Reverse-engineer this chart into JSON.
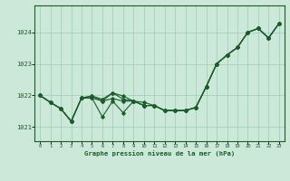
{
  "title": "Graphe pression niveau de la mer (hPa)",
  "background_color": "#cce8d8",
  "grid_color": "#99ccbb",
  "line_color": "#1a5c2a",
  "marker_color": "#1a5c2a",
  "xlim": [
    -0.5,
    23.5
  ],
  "ylim": [
    1020.55,
    1024.85
  ],
  "yticks": [
    1021,
    1022,
    1023,
    1024
  ],
  "xticks": [
    0,
    1,
    2,
    3,
    4,
    5,
    6,
    7,
    8,
    9,
    10,
    11,
    12,
    13,
    14,
    15,
    16,
    17,
    18,
    19,
    20,
    21,
    22,
    23
  ],
  "series1": [
    1022.0,
    1021.78,
    1021.58,
    1021.18,
    1021.92,
    1021.92,
    1021.82,
    1021.9,
    1021.82,
    1021.82,
    1021.68,
    1021.68,
    1021.52,
    1021.52,
    1021.52,
    1021.62,
    1022.28,
    1023.0,
    1023.28,
    1023.52,
    1024.0,
    1024.12,
    1023.82,
    1024.28
  ],
  "series2": [
    1022.0,
    1021.78,
    1021.58,
    1021.18,
    1021.92,
    1021.92,
    1021.32,
    1021.82,
    1021.45,
    1021.82,
    1021.68,
    1021.68,
    1021.52,
    1021.52,
    1021.52,
    1021.62,
    1022.28,
    1023.0,
    1023.28,
    1023.52,
    1024.0,
    1024.12,
    1023.82,
    1024.28
  ],
  "series3": [
    1022.0,
    1021.78,
    1021.58,
    1021.18,
    1021.92,
    1021.98,
    1021.88,
    1022.08,
    1021.88,
    1021.82,
    1021.78,
    1021.68,
    1021.52,
    1021.52,
    1021.52,
    1021.62,
    1022.28,
    1023.0,
    1023.28,
    1023.52,
    1024.0,
    1024.12,
    1023.82,
    1024.28
  ],
  "series4": [
    1022.0,
    1021.78,
    1021.58,
    1021.18,
    1021.92,
    1021.98,
    1021.82,
    1022.08,
    1021.98,
    1021.82,
    1021.68,
    1021.68,
    1021.52,
    1021.52,
    1021.52,
    1021.62,
    1022.28,
    1023.0,
    1023.28,
    1023.52,
    1024.0,
    1024.12,
    1023.82,
    1024.28
  ]
}
